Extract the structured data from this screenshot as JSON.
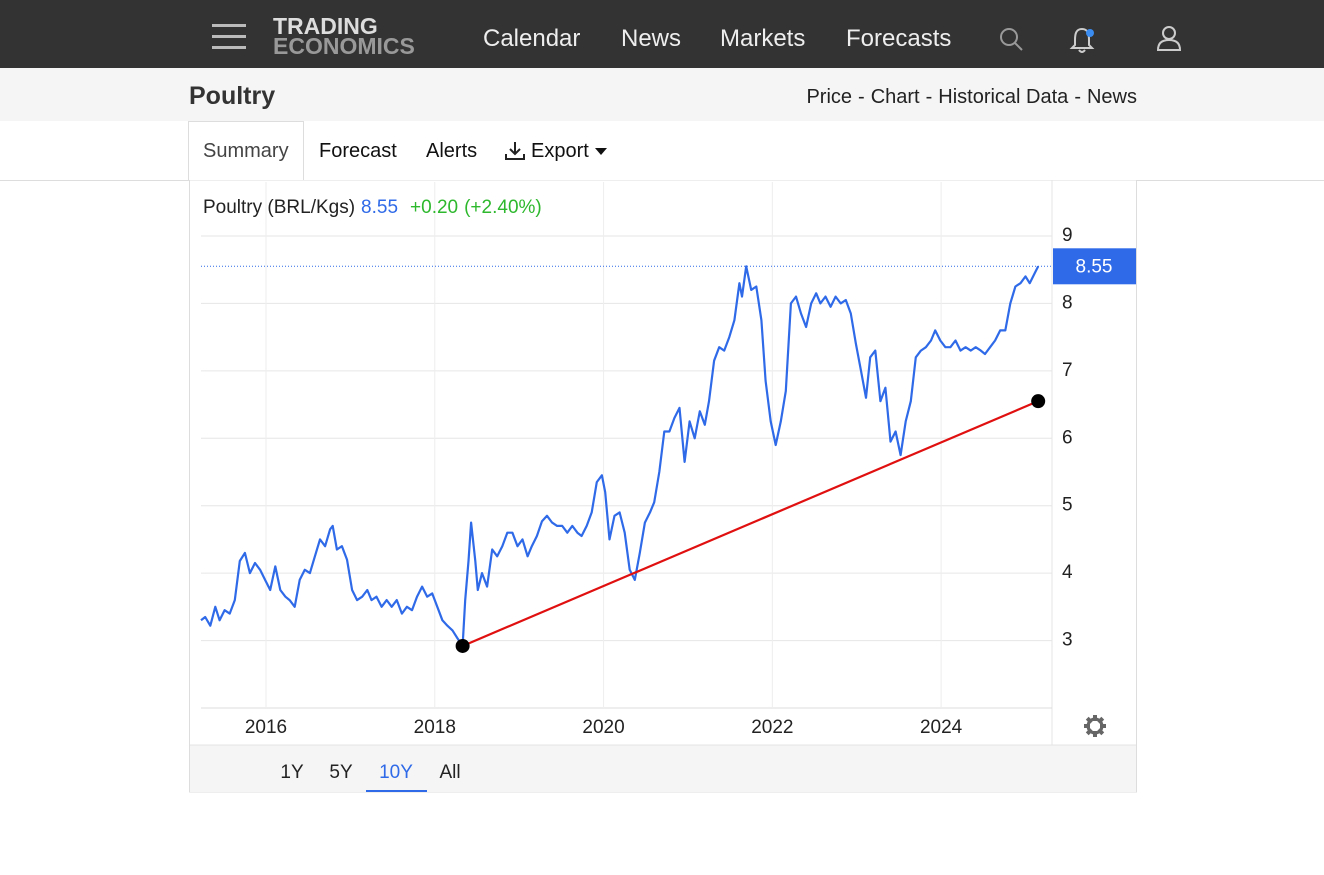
{
  "nav": {
    "logo": [
      "TRADING",
      "ECONOMICS"
    ],
    "links": [
      "Calendar",
      "News",
      "Markets",
      "Forecasts"
    ]
  },
  "header": {
    "title": "Poultry",
    "links": [
      "Price",
      "Chart",
      "Historical Data",
      "News"
    ],
    "separator": "-"
  },
  "tabs": {
    "items": [
      "Summary",
      "Forecast",
      "Alerts",
      "Export"
    ],
    "selected": 0
  },
  "chart_data": {
    "type": "line",
    "legend": {
      "name": "Poultry (BRL/Kgs)",
      "change": "+0.20",
      "change_pct": "(+2.40%)"
    },
    "last_value": 8.55,
    "xlim": [
      2015.23,
      2025.29
    ],
    "xticks": [
      2016,
      2018,
      2020,
      2022,
      2024
    ],
    "ylim": [
      2,
      9.8
    ],
    "yticks": [
      3,
      4,
      5,
      6,
      7,
      8,
      9
    ],
    "grid": true,
    "x": [
      2015.23,
      2015.28,
      2015.34,
      2015.4,
      2015.45,
      2015.51,
      2015.57,
      2015.63,
      2015.69,
      2015.75,
      2015.81,
      2015.87,
      2015.93,
      2015.99,
      2016.05,
      2016.11,
      2016.17,
      2016.23,
      2016.28,
      2016.34,
      2016.4,
      2016.46,
      2016.52,
      2016.58,
      2016.64,
      2016.7,
      2016.76,
      2016.79,
      2016.84,
      2016.9,
      2016.96,
      2017.02,
      2017.08,
      2017.14,
      2017.2,
      2017.25,
      2017.31,
      2017.37,
      2017.43,
      2017.49,
      2017.55,
      2017.61,
      2017.67,
      2017.73,
      2017.79,
      2017.85,
      2017.91,
      2017.97,
      2018.03,
      2018.09,
      2018.15,
      2018.21,
      2018.27,
      2018.33,
      2018.36,
      2018.4,
      2018.43,
      2018.48,
      2018.51,
      2018.56,
      2018.62,
      2018.68,
      2018.74,
      2018.8,
      2018.86,
      2018.92,
      2018.98,
      2019.04,
      2019.1,
      2019.15,
      2019.21,
      2019.27,
      2019.33,
      2019.39,
      2019.45,
      2019.51,
      2019.57,
      2019.63,
      2019.69,
      2019.74,
      2019.8,
      2019.86,
      2019.92,
      2019.98,
      2020.02,
      2020.07,
      2020.13,
      2020.19,
      2020.25,
      2020.31,
      2020.37,
      2020.43,
      2020.49,
      2020.55,
      2020.6,
      2020.66,
      2020.72,
      2020.78,
      2020.84,
      2020.9,
      2020.96,
      2021.02,
      2021.08,
      2021.14,
      2021.2,
      2021.25,
      2021.31,
      2021.37,
      2021.43,
      2021.49,
      2021.55,
      2021.61,
      2021.64,
      2021.69,
      2021.75,
      2021.81,
      2021.87,
      2021.92,
      2021.98,
      2022.04,
      2022.1,
      2022.16,
      2022.22,
      2022.28,
      2022.34,
      2022.4,
      2022.46,
      2022.52,
      2022.57,
      2022.63,
      2022.69,
      2022.75,
      2022.81,
      2022.87,
      2022.93,
      2022.99,
      2023.05,
      2023.11,
      2023.16,
      2023.22,
      2023.28,
      2023.34,
      2023.4,
      2023.46,
      2023.52,
      2023.58,
      2023.64,
      2023.7,
      2023.76,
      2023.82,
      2023.88,
      2023.93,
      2023.99,
      2024.05,
      2024.11,
      2024.17,
      2024.23,
      2024.29,
      2024.35,
      2024.41,
      2024.47,
      2024.52,
      2024.58,
      2024.64,
      2024.7,
      2024.76,
      2024.82,
      2024.88,
      2024.94,
      2025.0,
      2025.05,
      2025.11,
      2025.15
    ],
    "series": [
      {
        "name": "Poultry",
        "color": "#2f6ae8",
        "values": [
          3.3,
          3.35,
          3.22,
          3.5,
          3.3,
          3.45,
          3.4,
          3.6,
          4.18,
          4.3,
          4.0,
          4.15,
          4.05,
          3.9,
          3.75,
          4.1,
          3.75,
          3.65,
          3.6,
          3.5,
          3.9,
          4.05,
          4.0,
          4.25,
          4.5,
          4.4,
          4.65,
          4.7,
          4.35,
          4.4,
          4.2,
          3.75,
          3.6,
          3.65,
          3.75,
          3.6,
          3.65,
          3.5,
          3.6,
          3.5,
          3.6,
          3.4,
          3.5,
          3.45,
          3.65,
          3.8,
          3.65,
          3.7,
          3.5,
          3.3,
          3.22,
          3.15,
          3.03,
          2.92,
          3.6,
          4.18,
          4.75,
          4.18,
          3.75,
          4.0,
          3.8,
          4.35,
          4.25,
          4.4,
          4.6,
          4.6,
          4.4,
          4.5,
          4.25,
          4.4,
          4.55,
          4.77,
          4.85,
          4.75,
          4.7,
          4.7,
          4.6,
          4.7,
          4.6,
          4.55,
          4.7,
          4.9,
          5.35,
          5.45,
          5.2,
          4.5,
          4.85,
          4.9,
          4.6,
          4.05,
          3.9,
          4.3,
          4.75,
          4.9,
          5.05,
          5.5,
          6.1,
          6.1,
          6.3,
          6.45,
          5.65,
          6.25,
          6.0,
          6.4,
          6.2,
          6.55,
          7.15,
          7.35,
          7.3,
          7.5,
          7.75,
          8.3,
          8.1,
          8.55,
          8.2,
          8.25,
          7.75,
          6.85,
          6.25,
          5.9,
          6.25,
          6.7,
          8.0,
          8.1,
          7.85,
          7.65,
          8.0,
          8.15,
          8.0,
          8.1,
          7.95,
          8.1,
          8.0,
          8.05,
          7.85,
          7.4,
          7.0,
          6.6,
          7.2,
          7.3,
          6.55,
          6.75,
          5.95,
          6.1,
          5.75,
          6.25,
          6.55,
          7.2,
          7.3,
          7.35,
          7.45,
          7.6,
          7.45,
          7.35,
          7.35,
          7.45,
          7.3,
          7.35,
          7.3,
          7.35,
          7.3,
          7.25,
          7.35,
          7.45,
          7.6,
          7.6,
          8.0,
          8.25,
          8.3,
          8.4,
          8.3,
          8.45,
          8.55
        ]
      }
    ],
    "trendline": {
      "color": "#e01010",
      "x": [
        2018.33,
        2025.15
      ],
      "values": [
        2.92,
        6.55
      ]
    },
    "ranges": {
      "items": [
        "1Y",
        "5Y",
        "10Y",
        "All"
      ],
      "selected": 2
    }
  }
}
